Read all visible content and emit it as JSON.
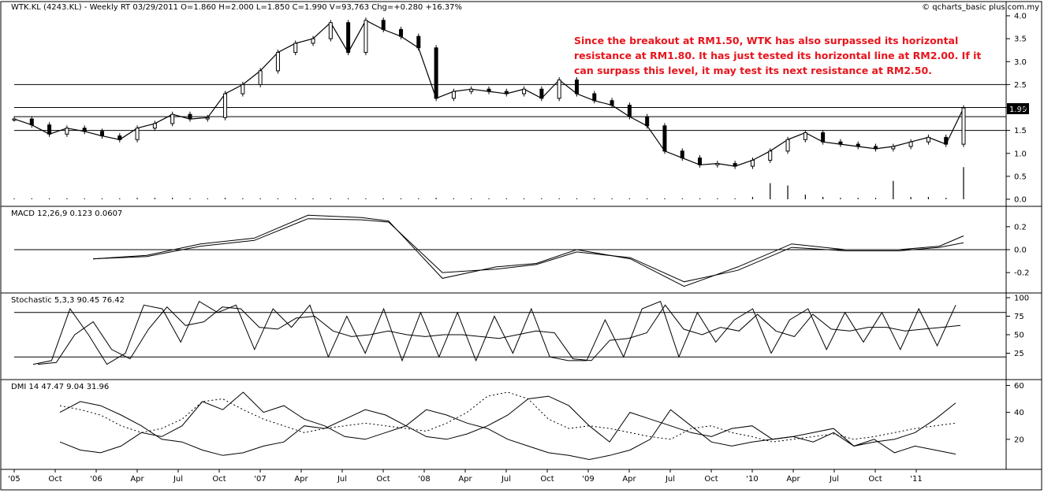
{
  "header": {
    "left": "WTK.KL (4243.KL) - Weekly RT  03/29/2011  O=1.860  H=2.000  L=1.850  C=1.990  V=93,763  Chg=+0.280  +16.37%",
    "right": "© qcharts_basic plus.com.my"
  },
  "annotation": [
    "Since the breakout at RM1.50, WTK has also surpassed its horizontal",
    "resistance at RM1.80. It has just tested its horizontal line at RM2.00. If it",
    "can surpass this level, it may test its next resistance at RM2.50."
  ],
  "last_price_label": "1.99",
  "panel_titles": {
    "macd": "MACD 12,26,9  0.123  0.0607",
    "stoch": "Stochastic 5,3,3  90.45  76.42",
    "dmi": "DMI 14  47.47  9.04  31.96"
  },
  "chart_data": [
    {
      "type": "line",
      "name": "price",
      "x_tick_labels": [
        "'05",
        "Oct",
        "'06",
        "Apr",
        "Jul",
        "Oct",
        "'07",
        "Apr",
        "Jul",
        "Oct",
        "'08",
        "Apr",
        "Jul",
        "Oct",
        "'09",
        "Apr",
        "Jul",
        "Oct",
        "'10",
        "Apr",
        "Jul",
        "Oct",
        "'11"
      ],
      "y_ticks": [
        0.0,
        0.5,
        1.0,
        1.5,
        2.0,
        2.5,
        3.0,
        3.5,
        4.0
      ],
      "ylim": [
        0,
        4
      ],
      "horizontal_lines": [
        1.5,
        1.8,
        2.0,
        2.5
      ],
      "x": [
        0,
        6,
        12,
        18,
        24,
        30,
        36,
        42,
        48,
        54,
        60,
        66,
        72,
        78,
        84,
        90,
        96,
        102,
        108,
        114,
        120,
        126,
        132,
        138,
        144,
        150,
        156,
        162,
        168,
        174,
        180,
        186,
        192,
        198,
        204,
        210,
        216,
        222,
        228,
        234,
        240,
        246,
        252,
        258,
        264,
        270,
        276,
        282,
        288,
        294,
        300,
        306,
        312,
        318,
        324
      ],
      "close": [
        1.75,
        1.62,
        1.42,
        1.55,
        1.48,
        1.38,
        1.3,
        1.55,
        1.65,
        1.85,
        1.75,
        1.78,
        2.3,
        2.5,
        2.8,
        3.2,
        3.4,
        3.5,
        3.85,
        3.2,
        3.9,
        3.7,
        3.55,
        3.3,
        2.2,
        2.35,
        2.4,
        2.35,
        2.3,
        2.4,
        2.2,
        2.6,
        2.3,
        2.15,
        2.05,
        1.8,
        1.6,
        1.05,
        0.9,
        0.75,
        0.78,
        0.72,
        0.85,
        1.05,
        1.3,
        1.45,
        1.25,
        1.2,
        1.15,
        1.1,
        1.15,
        1.25,
        1.35,
        1.2,
        1.99
      ],
      "volume": [
        0.02,
        0.02,
        0.02,
        0.02,
        0.02,
        0.02,
        0.02,
        0.03,
        0.03,
        0.03,
        0.02,
        0.02,
        0.03,
        0.02,
        0.02,
        0.02,
        0.02,
        0.02,
        0.02,
        0.02,
        0.02,
        0.02,
        0.02,
        0.02,
        0.03,
        0.02,
        0.02,
        0.02,
        0.02,
        0.02,
        0.02,
        0.02,
        0.02,
        0.02,
        0.02,
        0.02,
        0.02,
        0.02,
        0.02,
        0.02,
        0.02,
        0.02,
        0.05,
        0.35,
        0.3,
        0.1,
        0.05,
        0.03,
        0.03,
        0.03,
        0.4,
        0.05,
        0.05,
        0.03,
        0.7
      ]
    },
    {
      "type": "line",
      "name": "MACD",
      "y_ticks": [
        0.2,
        0.0,
        -0.2
      ],
      "ylim": [
        -0.35,
        0.35
      ],
      "zero_line": 0,
      "x": [
        0,
        20,
        40,
        60,
        80,
        100,
        110,
        130,
        150,
        165,
        180,
        200,
        220,
        240,
        260,
        280,
        300,
        315,
        324
      ],
      "macd": [
        -0.08,
        -0.05,
        0.05,
        0.1,
        0.3,
        0.28,
        0.25,
        -0.25,
        -0.15,
        -0.12,
        0.0,
        -0.08,
        -0.32,
        -0.15,
        0.05,
        0.0,
        0.0,
        0.03,
        0.12
      ],
      "signal": [
        -0.08,
        -0.06,
        0.03,
        0.08,
        0.27,
        0.26,
        0.24,
        -0.2,
        -0.17,
        -0.13,
        -0.02,
        -0.07,
        -0.28,
        -0.18,
        0.02,
        -0.01,
        -0.01,
        0.02,
        0.06
      ]
    },
    {
      "type": "line",
      "name": "Stochastic",
      "y_ticks": [
        100,
        75,
        50,
        25
      ],
      "ylim": [
        0,
        100
      ],
      "bands": [
        20,
        80
      ],
      "k": [
        10,
        15,
        85,
        50,
        10,
        25,
        90,
        85,
        40,
        95,
        80,
        90,
        30,
        85,
        60,
        90,
        20,
        75,
        25,
        85,
        15,
        80,
        20,
        80,
        15,
        75,
        25,
        85,
        20,
        15,
        15,
        70,
        20,
        85,
        95,
        20,
        80,
        40,
        70,
        85,
        25,
        70,
        85,
        30,
        80,
        40,
        80,
        30,
        85,
        35,
        90
      ]
    },
    {
      "type": "line",
      "name": "DMI",
      "y_ticks": [
        60,
        40,
        20
      ],
      "ylim": [
        0,
        62
      ],
      "plus_di": [
        18,
        12,
        10,
        15,
        25,
        22,
        30,
        48,
        42,
        55,
        40,
        45,
        35,
        30,
        22,
        20,
        25,
        30,
        42,
        38,
        32,
        28,
        20,
        15,
        10,
        8,
        5,
        8,
        12,
        20,
        42,
        30,
        18,
        15,
        18,
        20,
        22,
        18,
        25,
        15,
        20,
        10,
        15,
        12,
        9
      ],
      "minus_di": [
        40,
        48,
        45,
        38,
        30,
        20,
        18,
        12,
        8,
        10,
        15,
        18,
        30,
        28,
        35,
        42,
        38,
        30,
        22,
        20,
        24,
        30,
        38,
        50,
        52,
        45,
        30,
        18,
        40,
        35,
        30,
        25,
        22,
        28,
        30,
        20,
        22,
        25,
        28,
        15,
        18,
        20,
        25,
        35,
        47
      ],
      "adx": [
        45,
        42,
        38,
        30,
        25,
        28,
        35,
        48,
        50,
        42,
        35,
        30,
        25,
        28,
        30,
        32,
        30,
        28,
        26,
        32,
        40,
        52,
        55,
        50,
        35,
        28,
        30,
        28,
        25,
        22,
        20,
        28,
        30,
        25,
        22,
        18,
        20,
        22,
        24,
        20,
        22,
        25,
        28,
        30,
        32
      ]
    }
  ]
}
